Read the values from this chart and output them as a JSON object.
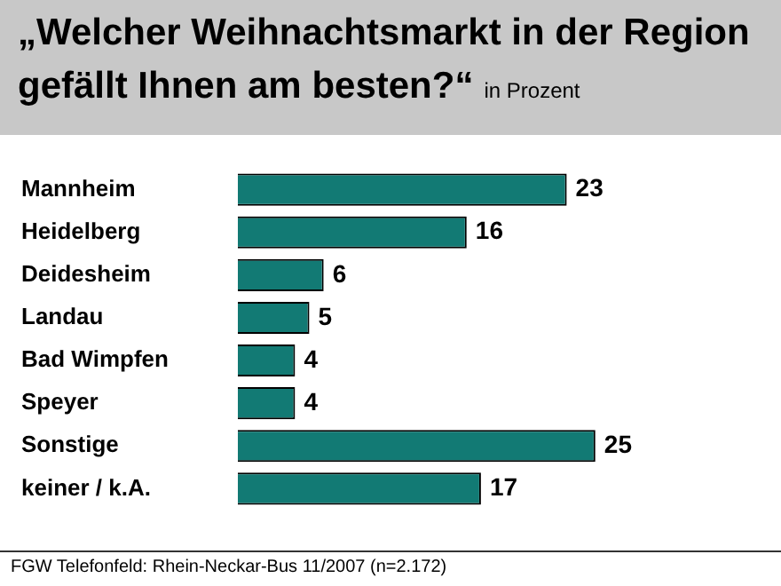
{
  "chart_data": {
    "type": "bar",
    "orientation": "horizontal",
    "title": "„Welcher Weihnachtsmarkt in der Region gefällt Ihnen am besten?“",
    "subtitle": "in Prozent",
    "categories": [
      "Mannheim",
      "Heidelberg",
      "Deidesheim",
      "Landau",
      "Bad Wimpfen",
      "Speyer",
      "Sonstige",
      "keiner / k.A."
    ],
    "values": [
      23,
      16,
      6,
      5,
      4,
      4,
      25,
      17
    ],
    "color": "#127a74",
    "data_labels": true,
    "legend": false,
    "annotations": [
      "FGW Telefonfeld: Rhein-Neckar-Bus 11/2007 (n=2.172)"
    ]
  }
}
